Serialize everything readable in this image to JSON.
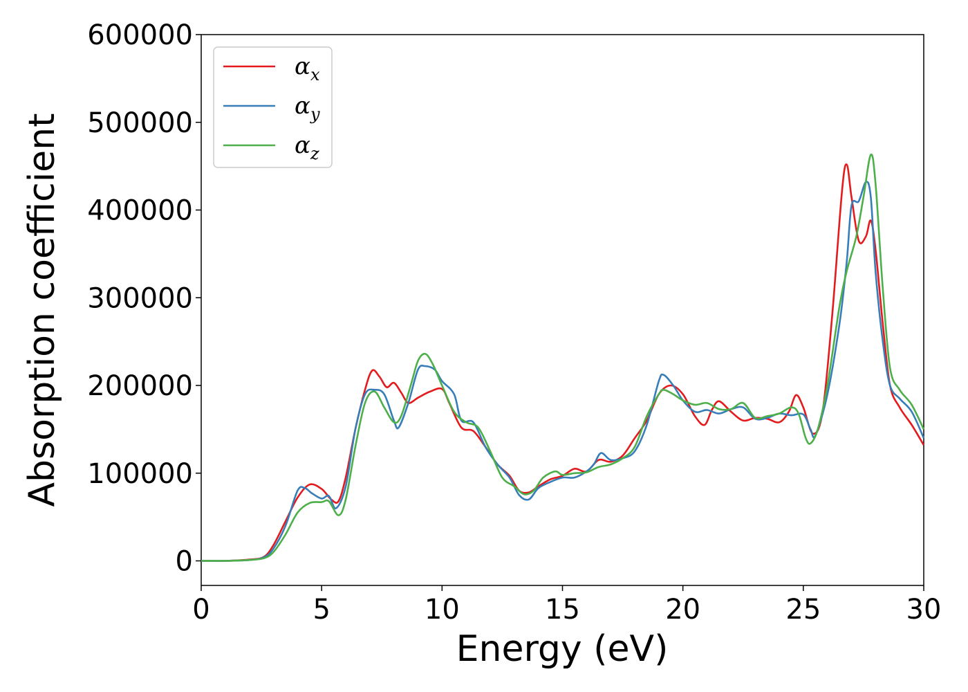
{
  "chart_data": {
    "type": "line",
    "title": "",
    "xlabel": "Energy (eV)",
    "ylabel": "Absorption coefficient",
    "xlim": [
      0,
      30
    ],
    "ylim": [
      -28000,
      600000
    ],
    "xticks": [
      "0",
      "5",
      "10",
      "15",
      "20",
      "25",
      "30"
    ],
    "yticks": [
      "0",
      "100000",
      "200000",
      "300000",
      "400000",
      "500000",
      "600000"
    ],
    "grid": false,
    "legend": {
      "placement": "top-left"
    },
    "series": [
      {
        "name": "α",
        "sub": "x",
        "color": "#e41a1c",
        "points": [
          [
            0,
            0
          ],
          [
            1,
            0
          ],
          [
            2,
            1500
          ],
          [
            2.6,
            4500
          ],
          [
            3,
            18000
          ],
          [
            3.5,
            45000
          ],
          [
            4,
            72000
          ],
          [
            4.5,
            87000
          ],
          [
            5,
            82000
          ],
          [
            5.4,
            70000
          ],
          [
            5.7,
            68000
          ],
          [
            6,
            95000
          ],
          [
            6.4,
            150000
          ],
          [
            6.8,
            195000
          ],
          [
            7.1,
            217000
          ],
          [
            7.4,
            210000
          ],
          [
            7.7,
            198000
          ],
          [
            8,
            203000
          ],
          [
            8.3,
            192000
          ],
          [
            8.6,
            180000
          ],
          [
            9,
            186000
          ],
          [
            9.5,
            193000
          ],
          [
            10,
            196000
          ],
          [
            10.3,
            180000
          ],
          [
            10.8,
            152000
          ],
          [
            11.3,
            148000
          ],
          [
            11.8,
            130000
          ],
          [
            12.3,
            110000
          ],
          [
            12.8,
            97000
          ],
          [
            13.2,
            80000
          ],
          [
            13.6,
            78000
          ],
          [
            14,
            85000
          ],
          [
            14.5,
            93000
          ],
          [
            15,
            97000
          ],
          [
            15.5,
            105000
          ],
          [
            16,
            102000
          ],
          [
            16.5,
            115000
          ],
          [
            17,
            113000
          ],
          [
            17.5,
            120000
          ],
          [
            18,
            140000
          ],
          [
            18.5,
            160000
          ],
          [
            19,
            190000
          ],
          [
            19.5,
            200000
          ],
          [
            20,
            190000
          ],
          [
            20.5,
            165000
          ],
          [
            20.9,
            155000
          ],
          [
            21.2,
            172000
          ],
          [
            21.5,
            182000
          ],
          [
            22,
            170000
          ],
          [
            22.5,
            160000
          ],
          [
            23,
            163000
          ],
          [
            23.5,
            162000
          ],
          [
            24,
            158000
          ],
          [
            24.4,
            170000
          ],
          [
            24.7,
            189000
          ],
          [
            25,
            175000
          ],
          [
            25.4,
            145000
          ],
          [
            25.8,
            170000
          ],
          [
            26.2,
            280000
          ],
          [
            26.6,
            420000
          ],
          [
            26.8,
            452000
          ],
          [
            27,
            415000
          ],
          [
            27.3,
            365000
          ],
          [
            27.6,
            370000
          ],
          [
            27.8,
            388000
          ],
          [
            28,
            355000
          ],
          [
            28.3,
            270000
          ],
          [
            28.6,
            200000
          ],
          [
            29,
            175000
          ],
          [
            29.5,
            155000
          ],
          [
            30,
            132000
          ]
        ]
      },
      {
        "name": "α",
        "sub": "y",
        "color": "#377eb8",
        "points": [
          [
            0,
            0
          ],
          [
            1,
            0
          ],
          [
            2,
            1000
          ],
          [
            2.6,
            4000
          ],
          [
            3,
            14000
          ],
          [
            3.5,
            40000
          ],
          [
            4,
            80000
          ],
          [
            4.3,
            83000
          ],
          [
            4.6,
            77000
          ],
          [
            5,
            71000
          ],
          [
            5.3,
            74000
          ],
          [
            5.6,
            60000
          ],
          [
            6,
            85000
          ],
          [
            6.4,
            150000
          ],
          [
            6.8,
            190000
          ],
          [
            7.2,
            195000
          ],
          [
            7.6,
            190000
          ],
          [
            8,
            160000
          ],
          [
            8.2,
            152000
          ],
          [
            8.6,
            180000
          ],
          [
            9,
            218000
          ],
          [
            9.3,
            222000
          ],
          [
            9.7,
            218000
          ],
          [
            10,
            205000
          ],
          [
            10.5,
            190000
          ],
          [
            10.8,
            160000
          ],
          [
            11.3,
            158000
          ],
          [
            11.8,
            130000
          ],
          [
            12.3,
            110000
          ],
          [
            12.8,
            95000
          ],
          [
            13.2,
            75000
          ],
          [
            13.6,
            70000
          ],
          [
            14,
            83000
          ],
          [
            14.5,
            90000
          ],
          [
            15,
            95000
          ],
          [
            15.5,
            95000
          ],
          [
            16,
            102000
          ],
          [
            16.3,
            110000
          ],
          [
            16.6,
            123000
          ],
          [
            17,
            115000
          ],
          [
            17.5,
            117000
          ],
          [
            18,
            125000
          ],
          [
            18.5,
            155000
          ],
          [
            19,
            205000
          ],
          [
            19.2,
            212000
          ],
          [
            19.6,
            200000
          ],
          [
            20,
            183000
          ],
          [
            20.5,
            170000
          ],
          [
            21,
            172000
          ],
          [
            21.5,
            168000
          ],
          [
            22,
            173000
          ],
          [
            22.5,
            175000
          ],
          [
            23,
            162000
          ],
          [
            23.5,
            163000
          ],
          [
            24,
            168000
          ],
          [
            24.5,
            166000
          ],
          [
            25,
            167000
          ],
          [
            25.3,
            150000
          ],
          [
            25.5,
            143000
          ],
          [
            26,
            190000
          ],
          [
            26.5,
            270000
          ],
          [
            26.8,
            340000
          ],
          [
            27,
            405000
          ],
          [
            27.3,
            410000
          ],
          [
            27.6,
            432000
          ],
          [
            27.8,
            415000
          ],
          [
            28,
            330000
          ],
          [
            28.3,
            250000
          ],
          [
            28.6,
            200000
          ],
          [
            29,
            185000
          ],
          [
            29.5,
            170000
          ],
          [
            30,
            140000
          ]
        ]
      },
      {
        "name": "α",
        "sub": "z",
        "color": "#4daf4a",
        "points": [
          [
            0,
            0
          ],
          [
            1,
            0
          ],
          [
            2,
            1000
          ],
          [
            2.6,
            3000
          ],
          [
            3,
            10000
          ],
          [
            3.5,
            30000
          ],
          [
            4,
            55000
          ],
          [
            4.5,
            66000
          ],
          [
            5,
            67000
          ],
          [
            5.3,
            68000
          ],
          [
            5.7,
            52000
          ],
          [
            6,
            70000
          ],
          [
            6.4,
            130000
          ],
          [
            6.8,
            180000
          ],
          [
            7.2,
            193000
          ],
          [
            7.6,
            175000
          ],
          [
            8,
            158000
          ],
          [
            8.3,
            165000
          ],
          [
            8.7,
            200000
          ],
          [
            9,
            228000
          ],
          [
            9.3,
            236000
          ],
          [
            9.6,
            225000
          ],
          [
            10,
            200000
          ],
          [
            10.5,
            170000
          ],
          [
            11,
            158000
          ],
          [
            11.5,
            152000
          ],
          [
            12,
            125000
          ],
          [
            12.5,
            95000
          ],
          [
            13,
            85000
          ],
          [
            13.4,
            76000
          ],
          [
            13.8,
            80000
          ],
          [
            14.2,
            95000
          ],
          [
            14.7,
            102000
          ],
          [
            15,
            98000
          ],
          [
            15.5,
            100000
          ],
          [
            16,
            101000
          ],
          [
            16.5,
            107000
          ],
          [
            17,
            110000
          ],
          [
            17.5,
            117000
          ],
          [
            18,
            130000
          ],
          [
            18.5,
            165000
          ],
          [
            19,
            190000
          ],
          [
            19.2,
            195000
          ],
          [
            19.6,
            190000
          ],
          [
            20,
            183000
          ],
          [
            20.5,
            178000
          ],
          [
            21,
            180000
          ],
          [
            21.5,
            173000
          ],
          [
            22,
            173000
          ],
          [
            22.5,
            180000
          ],
          [
            23,
            163000
          ],
          [
            23.5,
            165000
          ],
          [
            24,
            168000
          ],
          [
            24.5,
            175000
          ],
          [
            24.8,
            168000
          ],
          [
            25.1,
            140000
          ],
          [
            25.3,
            134000
          ],
          [
            25.6,
            150000
          ],
          [
            26,
            200000
          ],
          [
            26.5,
            290000
          ],
          [
            26.8,
            330000
          ],
          [
            27.2,
            370000
          ],
          [
            27.5,
            415000
          ],
          [
            27.8,
            463000
          ],
          [
            28,
            430000
          ],
          [
            28.3,
            310000
          ],
          [
            28.6,
            220000
          ],
          [
            29,
            195000
          ],
          [
            29.5,
            178000
          ],
          [
            30,
            150000
          ]
        ]
      }
    ]
  }
}
